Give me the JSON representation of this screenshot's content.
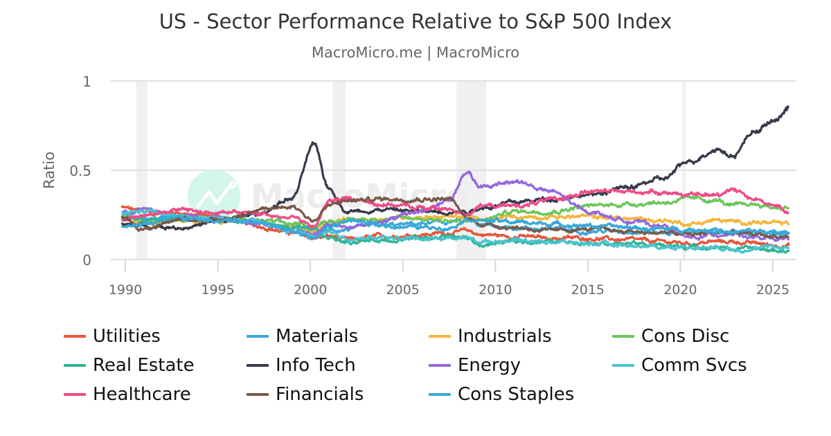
{
  "chart_data": {
    "type": "line",
    "title": "US - Sector Performance Relative to S&P 500 Index",
    "subtitle": "MacroMicro.me | MacroMicro",
    "watermark": "MacroMicro",
    "xlabel": "",
    "ylabel": "Ratio",
    "xlim": [
      1989.6,
      2026.2
    ],
    "ylim": [
      0,
      1
    ],
    "yticks": [
      0,
      0.5,
      1
    ],
    "ytick_labels": [
      "0",
      "0.5",
      "1"
    ],
    "xticks": [
      1990,
      1995,
      2000,
      2005,
      2010,
      2015,
      2020,
      2025
    ],
    "xtick_labels": [
      "1990",
      "1995",
      "2000",
      "2005",
      "2010",
      "2015",
      "2020",
      "2025"
    ],
    "grid": true,
    "legend_position": "bottom",
    "recession_bands": [
      [
        1990.6,
        1991.2
      ],
      [
        2001.2,
        2001.9
      ],
      [
        2007.9,
        2009.5
      ],
      [
        2020.1,
        2020.3
      ]
    ],
    "x": [
      1989.8,
      1991,
      1993,
      1995,
      1997,
      1999,
      2000.2,
      2001,
      2002,
      2004,
      2006,
      2007.5,
      2008.5,
      2009.2,
      2011,
      2013,
      2015,
      2017,
      2019,
      2020.5,
      2022,
      2022.8,
      2024,
      2025.2,
      2025.9
    ],
    "series": [
      {
        "name": "Utilities",
        "color": "#e8553a",
        "values": [
          0.29,
          0.27,
          0.26,
          0.24,
          0.19,
          0.15,
          0.12,
          0.13,
          0.11,
          0.13,
          0.14,
          0.15,
          0.16,
          0.14,
          0.13,
          0.12,
          0.12,
          0.11,
          0.1,
          0.09,
          0.1,
          0.1,
          0.09,
          0.08,
          0.08
        ]
      },
      {
        "name": "Materials",
        "color": "#3aa9db",
        "values": [
          0.25,
          0.23,
          0.24,
          0.23,
          0.21,
          0.17,
          0.15,
          0.16,
          0.17,
          0.19,
          0.2,
          0.21,
          0.23,
          0.19,
          0.18,
          0.17,
          0.16,
          0.16,
          0.15,
          0.15,
          0.16,
          0.15,
          0.15,
          0.14,
          0.14
        ]
      },
      {
        "name": "Industrials",
        "color": "#f5b53c",
        "values": [
          0.22,
          0.21,
          0.22,
          0.22,
          0.21,
          0.19,
          0.16,
          0.2,
          0.22,
          0.23,
          0.24,
          0.24,
          0.24,
          0.22,
          0.24,
          0.24,
          0.24,
          0.23,
          0.22,
          0.2,
          0.22,
          0.21,
          0.21,
          0.2,
          0.2
        ]
      },
      {
        "name": "Cons Disc",
        "color": "#6cc65a",
        "values": [
          0.24,
          0.22,
          0.24,
          0.23,
          0.22,
          0.2,
          0.18,
          0.22,
          0.22,
          0.23,
          0.23,
          0.22,
          0.21,
          0.22,
          0.27,
          0.27,
          0.3,
          0.31,
          0.32,
          0.34,
          0.33,
          0.3,
          0.31,
          0.29,
          0.29
        ]
      },
      {
        "name": "Real Estate",
        "color": "#2fb597",
        "values": [
          0.23,
          0.22,
          0.22,
          0.22,
          0.21,
          0.18,
          0.16,
          0.12,
          0.1,
          0.11,
          0.12,
          0.13,
          0.12,
          0.08,
          0.1,
          0.1,
          0.1,
          0.09,
          0.08,
          0.07,
          0.07,
          0.06,
          0.06,
          0.05,
          0.05
        ]
      },
      {
        "name": "Info Tech",
        "color": "#363a4c",
        "values": [
          0.19,
          0.19,
          0.18,
          0.21,
          0.25,
          0.34,
          0.64,
          0.4,
          0.27,
          0.28,
          0.27,
          0.27,
          0.27,
          0.29,
          0.32,
          0.34,
          0.36,
          0.4,
          0.45,
          0.55,
          0.62,
          0.58,
          0.72,
          0.78,
          0.86
        ]
      },
      {
        "name": "Energy",
        "color": "#9468dd",
        "values": [
          0.26,
          0.28,
          0.24,
          0.23,
          0.21,
          0.16,
          0.15,
          0.2,
          0.18,
          0.22,
          0.27,
          0.33,
          0.49,
          0.4,
          0.44,
          0.38,
          0.27,
          0.22,
          0.19,
          0.12,
          0.14,
          0.15,
          0.12,
          0.11,
          0.11
        ]
      },
      {
        "name": "Comm Svcs",
        "color": "#4cc3cf",
        "values": [
          0.26,
          0.27,
          0.24,
          0.23,
          0.21,
          0.16,
          0.13,
          0.14,
          0.12,
          0.12,
          0.12,
          0.12,
          0.12,
          0.1,
          0.11,
          0.1,
          0.09,
          0.08,
          0.07,
          0.07,
          0.07,
          0.06,
          0.06,
          0.07,
          0.07
        ]
      },
      {
        "name": "Healthcare",
        "color": "#ef4b88",
        "values": [
          0.22,
          0.25,
          0.28,
          0.26,
          0.26,
          0.24,
          0.18,
          0.33,
          0.34,
          0.31,
          0.29,
          0.28,
          0.26,
          0.3,
          0.3,
          0.33,
          0.38,
          0.38,
          0.38,
          0.36,
          0.36,
          0.4,
          0.34,
          0.3,
          0.25
        ]
      },
      {
        "name": "Financials",
        "color": "#7a5949",
        "values": [
          0.24,
          0.17,
          0.23,
          0.22,
          0.27,
          0.3,
          0.22,
          0.3,
          0.33,
          0.34,
          0.34,
          0.34,
          0.23,
          0.2,
          0.18,
          0.16,
          0.17,
          0.16,
          0.15,
          0.14,
          0.15,
          0.15,
          0.14,
          0.13,
          0.13
        ]
      },
      {
        "name": "Cons Staples",
        "color": "#38a8d8",
        "values": [
          0.18,
          0.2,
          0.23,
          0.22,
          0.22,
          0.16,
          0.12,
          0.18,
          0.22,
          0.19,
          0.18,
          0.18,
          0.23,
          0.22,
          0.21,
          0.2,
          0.19,
          0.18,
          0.17,
          0.17,
          0.16,
          0.15,
          0.16,
          0.15,
          0.15
        ]
      }
    ]
  }
}
